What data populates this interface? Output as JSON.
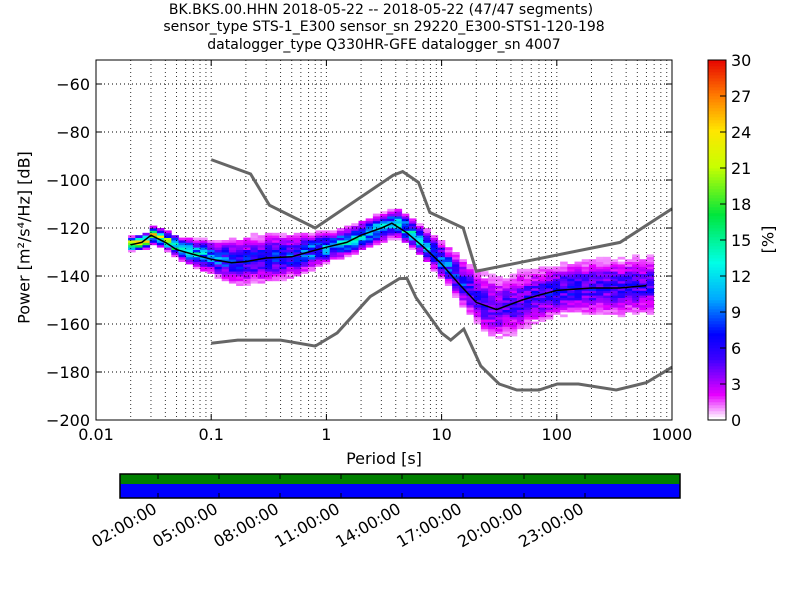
{
  "chart_data": {
    "type": "heatmap",
    "title_lines": [
      "BK.BKS.00.HHN   2018-05-22 -- 2018-05-22  (47/47 segments)",
      "sensor_type STS-1_E300 sensor_sn 29220_E300-STS1-120-198",
      "datalogger_type Q330HR-GFE datalogger_sn 4007"
    ],
    "xlabel": "Period [s]",
    "ylabel": "Power [m²/s⁴/Hz] [dB]",
    "xscale": "log",
    "xlim": [
      0.01,
      1000
    ],
    "ylim": [
      -200,
      -50
    ],
    "xticks": [
      {
        "v": 0.01,
        "l": "0.01"
      },
      {
        "v": 0.1,
        "l": "0.1"
      },
      {
        "v": 1,
        "l": "1"
      },
      {
        "v": 10,
        "l": "10"
      },
      {
        "v": 100,
        "l": "100"
      },
      {
        "v": 1000,
        "l": "1000"
      }
    ],
    "yticks": [
      {
        "v": -60,
        "l": "−60"
      },
      {
        "v": -80,
        "l": "−80"
      },
      {
        "v": -100,
        "l": "−100"
      },
      {
        "v": -120,
        "l": "−120"
      },
      {
        "v": -140,
        "l": "−140"
      },
      {
        "v": -160,
        "l": "−160"
      },
      {
        "v": -180,
        "l": "−180"
      },
      {
        "v": -200,
        "l": "−200"
      }
    ],
    "colorbar": {
      "label": "[%]",
      "range": [
        0,
        30
      ],
      "ticks": [
        "0",
        "3",
        "6",
        "9",
        "12",
        "15",
        "18",
        "21",
        "24",
        "27",
        "30"
      ]
    },
    "mean_curve": [
      [
        0.02,
        -127
      ],
      [
        0.025,
        -126
      ],
      [
        0.03,
        -123
      ],
      [
        0.04,
        -126
      ],
      [
        0.05,
        -129
      ],
      [
        0.07,
        -131
      ],
      [
        0.1,
        -133
      ],
      [
        0.15,
        -134.5
      ],
      [
        0.2,
        -134
      ],
      [
        0.3,
        -132.5
      ],
      [
        0.5,
        -132
      ],
      [
        0.7,
        -130
      ],
      [
        1,
        -128
      ],
      [
        1.5,
        -126
      ],
      [
        2,
        -123
      ],
      [
        3,
        -120
      ],
      [
        3.7,
        -118
      ],
      [
        5,
        -122
      ],
      [
        7,
        -128
      ],
      [
        10,
        -135
      ],
      [
        14,
        -143
      ],
      [
        20,
        -151
      ],
      [
        30,
        -154
      ],
      [
        50,
        -150
      ],
      [
        70,
        -148
      ],
      [
        100,
        -146
      ],
      [
        200,
        -145
      ],
      [
        350,
        -145
      ],
      [
        600,
        -144
      ]
    ],
    "spread_db": [
      [
        0.02,
        1
      ],
      [
        0.05,
        2
      ],
      [
        0.1,
        4
      ],
      [
        0.2,
        6
      ],
      [
        0.5,
        5
      ],
      [
        1,
        3
      ],
      [
        3,
        3
      ],
      [
        5,
        3
      ],
      [
        10,
        4
      ],
      [
        20,
        7
      ],
      [
        30,
        8
      ],
      [
        50,
        7
      ],
      [
        100,
        6
      ],
      [
        300,
        7
      ],
      [
        600,
        7
      ]
    ],
    "high_noise_model": [
      [
        0.1,
        -91.5
      ],
      [
        0.22,
        -97.5
      ],
      [
        0.32,
        -110.5
      ],
      [
        0.8,
        -120
      ],
      [
        3.8,
        -98
      ],
      [
        4.6,
        -96.5
      ],
      [
        6.3,
        -101
      ],
      [
        7.9,
        -113.5
      ],
      [
        15.4,
        -120
      ],
      [
        20,
        -138
      ],
      [
        354,
        -126
      ],
      [
        1000,
        -112
      ]
    ],
    "low_noise_model": [
      [
        0.1,
        -168
      ],
      [
        0.17,
        -166.7
      ],
      [
        0.4,
        -166.7
      ],
      [
        0.8,
        -169.2
      ],
      [
        1.24,
        -163.7
      ],
      [
        2.4,
        -148.6
      ],
      [
        4.3,
        -141.1
      ],
      [
        5,
        -141
      ],
      [
        6,
        -149
      ],
      [
        10,
        -163.8
      ],
      [
        12,
        -166.7
      ],
      [
        15.6,
        -162.1
      ],
      [
        21.9,
        -177.5
      ],
      [
        31.6,
        -185
      ],
      [
        45,
        -187.5
      ],
      [
        70,
        -187.5
      ],
      [
        101,
        -185
      ],
      [
        154,
        -185
      ],
      [
        328,
        -187.5
      ],
      [
        600,
        -184.4
      ],
      [
        1000,
        -178
      ]
    ],
    "timeline": {
      "tick_labels": [
        "02:00:00",
        "05:00:00",
        "08:00:00",
        "11:00:00",
        "14:00:00",
        "17:00:00",
        "20:00:00",
        "23:00:00"
      ],
      "coverage_colors": [
        "#008000",
        "#0000ff"
      ]
    }
  }
}
